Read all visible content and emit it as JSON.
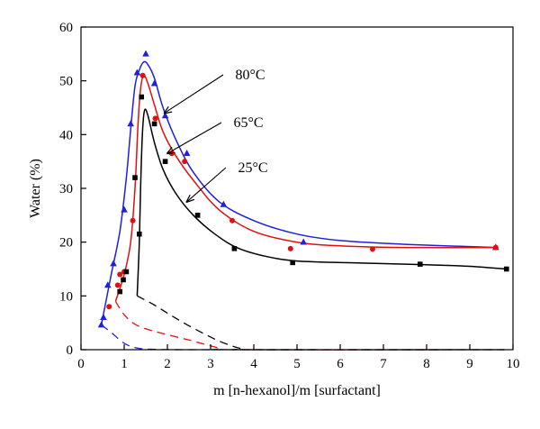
{
  "chart_data": {
    "type": "scatter",
    "xlabel": "m [n-hexanol]/m [surfactant]",
    "ylabel": "Water (%)",
    "xlim": [
      0,
      10
    ],
    "ylim": [
      0,
      60
    ],
    "xticks": [
      0,
      1,
      2,
      3,
      4,
      5,
      6,
      7,
      8,
      9,
      10
    ],
    "yticks": [
      0,
      10,
      20,
      30,
      40,
      50,
      60
    ],
    "grid": false,
    "legend": "none",
    "series": [
      {
        "name": "80°C",
        "color": "#1f1fdc",
        "marker": "triangle",
        "points": [
          [
            0.47,
            4.6
          ],
          [
            0.52,
            6.0
          ],
          [
            0.62,
            12.0
          ],
          [
            0.75,
            16.0
          ],
          [
            1.0,
            26.0
          ],
          [
            1.15,
            42.0
          ],
          [
            1.3,
            51.5
          ],
          [
            1.5,
            55.0
          ],
          [
            1.7,
            49.5
          ],
          [
            1.95,
            43.5
          ],
          [
            2.45,
            36.5
          ],
          [
            3.3,
            27.0
          ],
          [
            5.15,
            20.0
          ],
          [
            9.6,
            19.0
          ]
        ],
        "fit": [
          [
            0.47,
            4.6
          ],
          [
            0.7,
            14.0
          ],
          [
            0.9,
            22.0
          ],
          [
            1.05,
            32.0
          ],
          [
            1.15,
            41.0
          ],
          [
            1.25,
            49.0
          ],
          [
            1.35,
            52.0
          ],
          [
            1.45,
            53.5
          ],
          [
            1.55,
            53.0
          ],
          [
            1.7,
            50.5
          ],
          [
            1.9,
            45.0
          ],
          [
            2.2,
            39.0
          ],
          [
            2.6,
            33.0
          ],
          [
            3.2,
            27.5
          ],
          [
            4.0,
            24.0
          ],
          [
            5.0,
            21.5
          ],
          [
            6.0,
            20.3
          ],
          [
            7.5,
            19.6
          ],
          [
            9.6,
            19.0
          ]
        ],
        "dashed": [
          [
            0.47,
            4.6
          ],
          [
            0.7,
            3.2
          ],
          [
            1.0,
            1.2
          ],
          [
            1.3,
            0.3
          ],
          [
            1.8,
            0.05
          ],
          [
            3.5,
            0
          ],
          [
            9.8,
            0
          ]
        ]
      },
      {
        "name": "65°C",
        "color": "#e01010",
        "marker": "circle",
        "points": [
          [
            0.65,
            8.0
          ],
          [
            0.85,
            12.0
          ],
          [
            0.9,
            14.0
          ],
          [
            1.0,
            14.5
          ],
          [
            1.2,
            24.0
          ],
          [
            1.43,
            51.0
          ],
          [
            1.72,
            43.0
          ],
          [
            2.1,
            36.5
          ],
          [
            2.4,
            35.0
          ],
          [
            3.5,
            24.0
          ],
          [
            4.85,
            18.8
          ],
          [
            6.75,
            18.7
          ],
          [
            9.6,
            19.0
          ]
        ],
        "fit": [
          [
            0.8,
            9.0
          ],
          [
            1.0,
            14.0
          ],
          [
            1.15,
            20.0
          ],
          [
            1.25,
            30.0
          ],
          [
            1.32,
            42.0
          ],
          [
            1.38,
            48.5
          ],
          [
            1.45,
            51.0
          ],
          [
            1.55,
            49.5
          ],
          [
            1.7,
            45.5
          ],
          [
            1.9,
            40.5
          ],
          [
            2.2,
            36.0
          ],
          [
            2.6,
            31.5
          ],
          [
            3.2,
            26.0
          ],
          [
            4.0,
            22.0
          ],
          [
            5.0,
            20.0
          ],
          [
            6.0,
            19.3
          ],
          [
            7.5,
            19.0
          ],
          [
            9.6,
            19.0
          ]
        ],
        "dashed": [
          [
            0.8,
            9.0
          ],
          [
            1.0,
            6.5
          ],
          [
            1.3,
            4.5
          ],
          [
            1.8,
            3.2
          ],
          [
            2.5,
            1.8
          ],
          [
            3.2,
            0.3
          ],
          [
            3.6,
            0
          ],
          [
            9.8,
            0
          ]
        ]
      },
      {
        "name": "25°C",
        "color": "#000000",
        "marker": "square",
        "points": [
          [
            0.9,
            10.8
          ],
          [
            0.98,
            13.0
          ],
          [
            1.05,
            14.5
          ],
          [
            1.25,
            32.0
          ],
          [
            1.35,
            21.5
          ],
          [
            1.4,
            47.0
          ],
          [
            1.7,
            42.0
          ],
          [
            1.95,
            35.0
          ],
          [
            2.7,
            25.0
          ],
          [
            3.55,
            18.8
          ],
          [
            4.9,
            16.2
          ],
          [
            7.85,
            15.9
          ],
          [
            9.85,
            15.0
          ]
        ],
        "fit": [
          [
            1.3,
            10.0
          ],
          [
            1.35,
            20.0
          ],
          [
            1.38,
            30.0
          ],
          [
            1.42,
            40.0
          ],
          [
            1.47,
            44.5
          ],
          [
            1.55,
            43.5
          ],
          [
            1.7,
            38.5
          ],
          [
            1.9,
            33.5
          ],
          [
            2.2,
            29.0
          ],
          [
            2.6,
            25.0
          ],
          [
            3.1,
            21.5
          ],
          [
            3.6,
            19.0
          ],
          [
            4.2,
            17.5
          ],
          [
            5.0,
            16.5
          ],
          [
            6.5,
            16.1
          ],
          [
            8.0,
            15.8
          ],
          [
            9.0,
            15.5
          ],
          [
            9.85,
            15.0
          ]
        ],
        "dashed": [
          [
            1.3,
            10.0
          ],
          [
            1.7,
            8.3
          ],
          [
            2.1,
            6.3
          ],
          [
            2.6,
            4.0
          ],
          [
            3.2,
            1.6
          ],
          [
            3.7,
            0.2
          ],
          [
            4.0,
            0
          ],
          [
            9.8,
            0
          ]
        ]
      }
    ],
    "annotations": [
      {
        "text": "80°C",
        "series": "80°C",
        "arrow_to": [
          1.93,
          44.0
        ]
      },
      {
        "text": "65°C",
        "series": "65°C",
        "arrow_to": [
          2.0,
          36.5
        ]
      },
      {
        "text": "25°C",
        "series": "25°C",
        "arrow_to": [
          2.45,
          27.5
        ]
      }
    ]
  }
}
